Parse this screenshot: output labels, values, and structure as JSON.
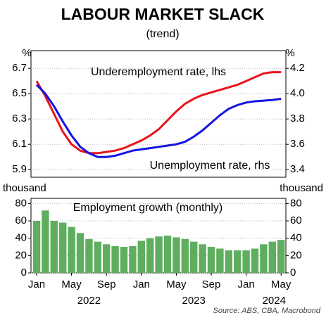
{
  "title": "LABOUR MARKET SLACK",
  "subtitle": "(trend)",
  "source": "Source: ABS, CBA, Macrobond",
  "chart_data": [
    {
      "type": "line",
      "y_label": "%",
      "y2_label": "%",
      "ylim": [
        5.84,
        6.84
      ],
      "yticks": [
        5.9,
        6.1,
        6.3,
        6.5,
        6.7
      ],
      "y2lim": [
        3.34,
        4.34
      ],
      "y2ticks": [
        3.4,
        3.6,
        3.8,
        {
          "value": 4,
          "label": "4.0"
        },
        4.2
      ],
      "grid": true,
      "series": [
        {
          "name": "Underemployment rate, lhs",
          "color": "#e8141b",
          "values": [
            6.6,
            6.48,
            6.34,
            6.2,
            6.1,
            6.05,
            6.03,
            6.03,
            6.04,
            6.05,
            6.07,
            6.1,
            6.13,
            6.17,
            6.22,
            6.29,
            6.36,
            6.42,
            6.46,
            6.49,
            6.51,
            6.53,
            6.55,
            6.57,
            6.6,
            6.63,
            6.66,
            6.67,
            6.67
          ]
        },
        {
          "name": "Unemployment rate, rhs",
          "color": "#1414e0",
          "axis": "y2",
          "values": [
            4.07,
            4.0,
            3.9,
            3.78,
            3.67,
            3.58,
            3.53,
            3.5,
            3.5,
            3.51,
            3.53,
            3.55,
            3.56,
            3.57,
            3.58,
            3.59,
            3.6,
            3.62,
            3.66,
            3.71,
            3.77,
            3.83,
            3.88,
            3.91,
            3.93,
            3.94,
            3.945,
            3.95,
            3.96
          ]
        }
      ]
    },
    {
      "type": "bar",
      "y_label": "thousand",
      "y2_label": "thousand",
      "name": "Employment growth (monthly)",
      "color": "#5fae5f",
      "categories": [
        "Jan",
        null,
        null,
        null,
        "May",
        null,
        null,
        null,
        "Sep",
        null,
        null,
        null,
        "Jan",
        null,
        null,
        null,
        "May",
        null,
        null,
        null,
        "Sep",
        null,
        null,
        null,
        "Jan",
        null,
        null,
        null,
        "May"
      ],
      "x_group_labels": [
        "2022",
        "2023",
        "2024"
      ],
      "values": [
        60,
        72,
        60,
        58,
        53,
        46,
        39,
        36,
        33,
        31,
        30,
        31,
        37,
        40,
        42,
        43,
        41,
        39,
        36,
        33,
        30,
        28,
        26,
        26,
        26,
        28,
        33,
        36,
        38
      ],
      "ylim": [
        0,
        86
      ],
      "yticks": [
        0,
        20,
        40,
        60,
        80
      ],
      "y2ticks": [
        0,
        20,
        40,
        60,
        80
      ],
      "grid": true
    }
  ]
}
